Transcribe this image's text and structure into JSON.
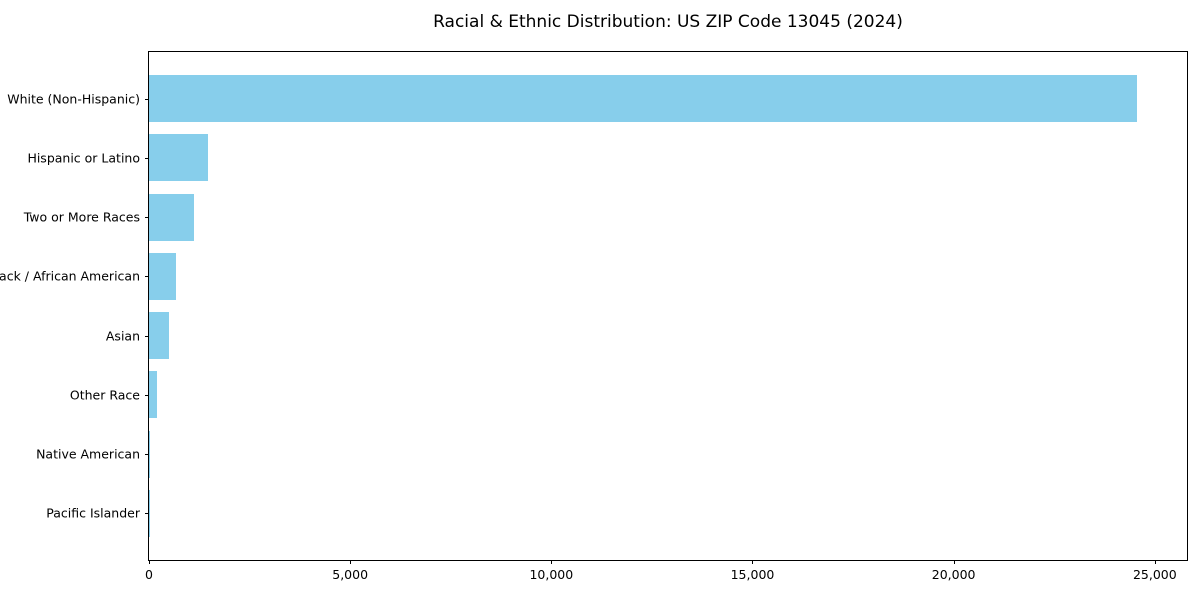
{
  "chart_data": {
    "type": "bar",
    "orientation": "horizontal",
    "title": "Racial & Ethnic Distribution: US ZIP Code 13045 (2024)",
    "categories": [
      "White (Non-Hispanic)",
      "Hispanic or Latino",
      "Two or More Races",
      "Black / African American",
      "Asian",
      "Other Race",
      "Native American",
      "Pacific Islander"
    ],
    "values": [
      24550,
      1470,
      1110,
      680,
      500,
      200,
      20,
      5
    ],
    "xlabel": "",
    "ylabel": "",
    "xlim": [
      0,
      25800
    ],
    "xticks": [
      0,
      5000,
      10000,
      15000,
      20000,
      25000
    ],
    "xtick_labels": [
      "0",
      "5,000",
      "10,000",
      "15,000",
      "20,000",
      "25,000"
    ],
    "bar_color": "#87CEEB",
    "axis_color": "#000000",
    "text_color": "#000000",
    "background": "#ffffff",
    "grid": false,
    "legend": false
  }
}
